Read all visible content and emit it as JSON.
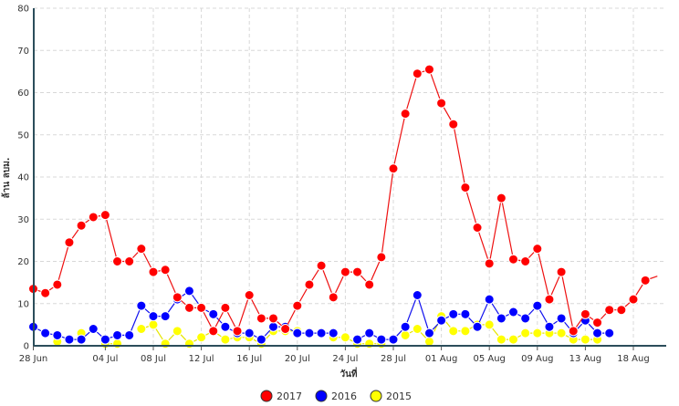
{
  "chart_data": {
    "type": "line",
    "xlabel": "วันที่",
    "ylabel": "ล้าน ลบม.",
    "ylim": [
      0,
      80
    ],
    "y_ticks": [
      "0",
      "10",
      "20",
      "30",
      "40",
      "50",
      "60",
      "70",
      "80"
    ],
    "x_day_range": [
      0,
      52
    ],
    "x_ticks": [
      {
        "day": 0,
        "label": "28 Jun"
      },
      {
        "day": 6,
        "label": "04 Jul"
      },
      {
        "day": 10,
        "label": "08 Jul"
      },
      {
        "day": 14,
        "label": "12 Jul"
      },
      {
        "day": 18,
        "label": "16 Jul"
      },
      {
        "day": 22,
        "label": "20 Jul"
      },
      {
        "day": 26,
        "label": "24 Jul"
      },
      {
        "day": 30,
        "label": "28 Jul"
      },
      {
        "day": 34,
        "label": "01 Aug"
      },
      {
        "day": 38,
        "label": "05 Aug"
      },
      {
        "day": 42,
        "label": "09 Aug"
      },
      {
        "day": 46,
        "label": "13 Aug"
      },
      {
        "day": 50,
        "label": "18 Aug"
      }
    ],
    "grid": true,
    "legend_position": "bottom-center",
    "series": [
      {
        "name": "2017",
        "color": "#ff0000",
        "line_color": "#ee1111",
        "values": [
          13.5,
          12.5,
          14.5,
          24.5,
          28.5,
          30.5,
          31,
          20,
          20,
          23,
          17.5,
          18,
          11.5,
          9,
          9,
          3.5,
          9,
          3.5,
          12,
          6.5,
          6.5,
          4,
          9.5,
          14.5,
          19,
          11.5,
          17.5,
          17.5,
          14.5,
          21,
          42,
          55,
          64.5,
          65.5,
          57.5,
          52.5,
          37.5,
          28,
          19.5,
          35,
          20.5,
          20,
          23,
          11,
          17.5,
          3.5,
          7.5,
          5.5,
          8.5,
          8.5,
          11,
          15.5,
          16.5
        ],
        "marker_last": false
      },
      {
        "name": "2016",
        "color": "#0000ff",
        "line_color": "#1111ee",
        "values": [
          4.5,
          3,
          2.5,
          1.5,
          1.5,
          4,
          1.5,
          2.5,
          2.5,
          9.5,
          7,
          7,
          11,
          13,
          9,
          7.5,
          4.5,
          3,
          3,
          1.5,
          4.5,
          4.5,
          3,
          3,
          3,
          3,
          null,
          1.5,
          3,
          1.5,
          1.5,
          4.5,
          12,
          3,
          6,
          7.5,
          7.5,
          4.5,
          11,
          6.5,
          8,
          6.5,
          9.5,
          4.5,
          6.5,
          3,
          6,
          3,
          3,
          null,
          null,
          null,
          null
        ]
      },
      {
        "name": "2015",
        "color": "#ffff00",
        "line_color": "#e6e600",
        "values": [
          null,
          null,
          1,
          null,
          3,
          null,
          0.5,
          0.5,
          null,
          4,
          5,
          0.5,
          3.5,
          0.5,
          2,
          3.5,
          1.5,
          2,
          2,
          0.5,
          3.5,
          3.5,
          3.5,
          null,
          null,
          2,
          2,
          0.5,
          0.5,
          0.5,
          null,
          2.5,
          4,
          1,
          7,
          3.5,
          3.5,
          5,
          5,
          1.5,
          1.5,
          3,
          3,
          3,
          3,
          1.5,
          1.5,
          1.5,
          null,
          null,
          null,
          null,
          null
        ]
      }
    ]
  }
}
